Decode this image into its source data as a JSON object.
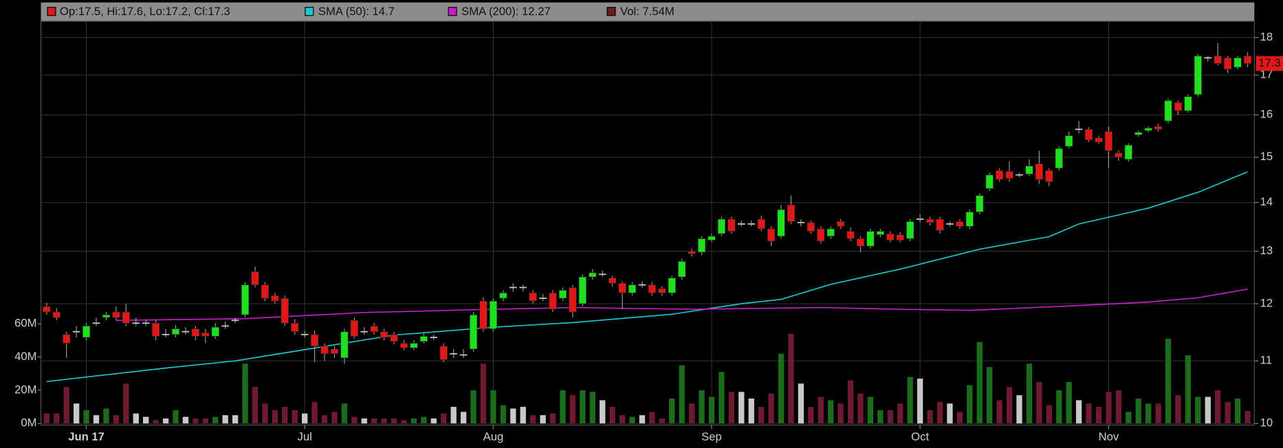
{
  "chart_data": {
    "type": "candlestick",
    "categories": [
      null,
      null,
      null,
      null,
      "Jun 17",
      null,
      null,
      null,
      null,
      null,
      null,
      null,
      null,
      null,
      null,
      null,
      null,
      null,
      null,
      null,
      null,
      null,
      null,
      null,
      null,
      null,
      "Jul",
      null,
      null,
      null,
      null,
      null,
      null,
      null,
      null,
      null,
      null,
      null,
      null,
      null,
      null,
      null,
      null,
      null,
      null,
      "Aug",
      null,
      null,
      null,
      null,
      null,
      null,
      null,
      null,
      null,
      null,
      null,
      null,
      null,
      null,
      null,
      null,
      null,
      null,
      null,
      null,
      null,
      "Sep",
      null,
      null,
      null,
      null,
      null,
      null,
      null,
      null,
      null,
      null,
      null,
      null,
      null,
      null,
      null,
      null,
      null,
      null,
      null,
      null,
      "Oct",
      null,
      null,
      null,
      null,
      null,
      null,
      null,
      null,
      null,
      null,
      null,
      null,
      null,
      null,
      null,
      null,
      null,
      null,
      "Nov",
      null,
      null,
      null,
      null,
      null,
      null,
      null,
      null,
      null,
      null,
      null,
      null,
      null,
      null
    ],
    "open": [
      11.95,
      11.85,
      11.45,
      11.5,
      11.4,
      11.65,
      11.75,
      11.85,
      11.85,
      11.65,
      11.65,
      11.65,
      11.45,
      11.45,
      11.5,
      11.55,
      11.48,
      11.42,
      11.6,
      11.7,
      11.8,
      12.6,
      12.35,
      12.15,
      12.1,
      11.65,
      11.45,
      11.45,
      11.25,
      11.2,
      11.05,
      11.7,
      11.5,
      11.6,
      11.5,
      11.45,
      11.3,
      11.22,
      11.33,
      11.4,
      11.25,
      11.12,
      11.1,
      11.2,
      12.05,
      11.55,
      12.1,
      12.3,
      12.3,
      12.2,
      12.1,
      12.2,
      12.1,
      12.3,
      12.0,
      12.5,
      12.55,
      12.48,
      12.38,
      12.2,
      12.35,
      12.35,
      12.28,
      12.2,
      12.5,
      13.0,
      12.98,
      13.22,
      13.35,
      13.65,
      13.55,
      13.55,
      13.65,
      13.45,
      13.3,
      13.95,
      13.58,
      13.58,
      13.45,
      13.3,
      13.6,
      13.4,
      13.25,
      13.1,
      13.33,
      13.35,
      13.33,
      13.25,
      13.65,
      13.65,
      13.65,
      13.55,
      13.6,
      13.5,
      13.8,
      14.3,
      14.7,
      14.68,
      14.6,
      14.62,
      14.85,
      14.7,
      14.75,
      15.25,
      15.65,
      15.65,
      15.45,
      15.6,
      15.1,
      14.95,
      15.52,
      15.62,
      15.72,
      15.85,
      16.3,
      16.1,
      16.5,
      17.45,
      17.5,
      17.45,
      17.2,
      17.5
    ],
    "high": [
      12.02,
      11.92,
      11.5,
      11.6,
      11.65,
      11.75,
      11.85,
      11.95,
      12.0,
      11.75,
      11.72,
      11.7,
      11.55,
      11.62,
      11.58,
      11.6,
      11.55,
      11.65,
      11.68,
      11.75,
      12.4,
      12.7,
      12.4,
      12.2,
      12.15,
      11.72,
      11.52,
      11.52,
      11.3,
      11.25,
      11.55,
      11.75,
      11.58,
      11.65,
      11.55,
      11.5,
      11.35,
      11.35,
      11.48,
      11.45,
      11.3,
      11.2,
      11.2,
      11.85,
      12.12,
      12.1,
      12.25,
      12.38,
      12.35,
      12.25,
      12.18,
      12.25,
      12.3,
      12.35,
      12.55,
      12.65,
      12.62,
      12.52,
      12.42,
      12.4,
      12.42,
      12.4,
      12.32,
      12.52,
      12.85,
      13.05,
      13.3,
      13.35,
      13.7,
      13.7,
      13.62,
      13.62,
      13.72,
      13.5,
      13.95,
      14.15,
      13.65,
      13.62,
      13.5,
      13.5,
      13.65,
      13.48,
      13.3,
      13.45,
      13.45,
      13.4,
      13.38,
      13.65,
      13.75,
      13.7,
      13.7,
      13.6,
      13.65,
      13.85,
      14.2,
      14.65,
      14.75,
      14.9,
      14.65,
      14.95,
      15.15,
      14.75,
      15.25,
      15.6,
      15.85,
      15.7,
      15.5,
      15.72,
      15.15,
      15.32,
      15.62,
      15.72,
      15.78,
      16.4,
      16.35,
      16.5,
      17.55,
      17.5,
      17.85,
      17.5,
      17.5,
      17.6
    ],
    "low": [
      11.8,
      11.7,
      11.05,
      11.4,
      11.35,
      11.6,
      11.7,
      11.7,
      11.6,
      11.6,
      11.6,
      11.35,
      11.4,
      11.4,
      11.45,
      11.35,
      11.3,
      11.38,
      11.55,
      11.65,
      11.75,
      12.3,
      12.05,
      12.0,
      11.6,
      11.45,
      11.4,
      10.98,
      11.0,
      11.05,
      10.95,
      11.38,
      11.45,
      11.45,
      11.35,
      11.28,
      11.18,
      11.18,
      11.3,
      11.35,
      10.98,
      11.05,
      11.05,
      11.15,
      11.5,
      11.5,
      12.05,
      12.22,
      12.22,
      12.0,
      12.05,
      11.85,
      12.05,
      11.75,
      11.95,
      12.45,
      12.5,
      12.32,
      11.9,
      12.15,
      12.3,
      12.15,
      12.15,
      12.15,
      12.45,
      12.9,
      12.92,
      13.18,
      13.3,
      13.35,
      13.5,
      13.5,
      13.4,
      13.1,
      13.25,
      13.55,
      13.5,
      13.35,
      13.15,
      13.25,
      13.45,
      13.2,
      12.98,
      13.05,
      13.28,
      13.18,
      13.18,
      13.2,
      13.58,
      13.52,
      13.35,
      13.5,
      13.45,
      13.45,
      13.75,
      14.25,
      14.45,
      14.45,
      14.55,
      14.58,
      14.4,
      14.35,
      14.7,
      15.2,
      15.55,
      15.35,
      15.3,
      14.75,
      14.92,
      14.9,
      15.48,
      15.58,
      15.6,
      15.8,
      16.0,
      16.05,
      16.45,
      17.35,
      17.25,
      17.05,
      17.15,
      17.2
    ],
    "close": [
      11.85,
      11.75,
      11.3,
      11.5,
      11.6,
      11.65,
      11.8,
      11.75,
      11.65,
      11.65,
      11.65,
      11.42,
      11.45,
      11.55,
      11.5,
      11.42,
      11.42,
      11.58,
      11.6,
      11.7,
      12.35,
      12.35,
      12.1,
      12.05,
      11.65,
      11.5,
      11.45,
      11.25,
      11.12,
      11.12,
      11.5,
      11.42,
      11.5,
      11.5,
      11.4,
      11.33,
      11.22,
      11.3,
      11.42,
      11.4,
      11.02,
      11.12,
      11.1,
      11.8,
      11.55,
      12.05,
      12.2,
      12.3,
      12.3,
      12.05,
      12.1,
      11.9,
      12.25,
      11.85,
      12.5,
      12.58,
      12.55,
      12.38,
      12.2,
      12.35,
      12.35,
      12.2,
      12.2,
      12.48,
      12.8,
      12.95,
      13.25,
      13.3,
      13.65,
      13.4,
      13.55,
      13.55,
      13.45,
      13.2,
      13.85,
      13.6,
      13.58,
      13.4,
      13.2,
      13.45,
      13.5,
      13.25,
      13.1,
      13.4,
      13.4,
      13.22,
      13.22,
      13.6,
      13.65,
      13.58,
      13.42,
      13.55,
      13.5,
      13.8,
      14.15,
      14.6,
      14.5,
      14.52,
      14.6,
      14.8,
      14.5,
      14.45,
      15.2,
      15.5,
      15.65,
      15.4,
      15.35,
      15.15,
      15.0,
      15.28,
      15.58,
      15.68,
      15.65,
      16.35,
      16.1,
      16.45,
      17.5,
      17.45,
      17.3,
      17.15,
      17.45,
      17.3
    ],
    "volume": [
      6,
      6,
      22,
      12,
      8,
      5,
      9,
      5,
      24,
      6,
      4,
      2,
      3,
      8,
      4,
      3,
      3,
      4,
      5,
      5,
      36,
      22,
      12,
      8,
      10,
      8,
      6,
      13,
      5,
      7,
      12,
      4,
      3,
      3,
      3,
      3,
      2,
      3,
      4,
      3,
      6,
      10,
      7,
      20,
      36,
      20,
      11,
      9,
      10,
      5,
      5,
      6,
      20,
      17,
      20,
      19,
      14,
      10,
      5,
      4,
      5,
      7,
      3,
      15,
      35,
      12,
      20,
      16,
      31,
      19,
      19,
      15,
      10,
      18,
      42,
      54,
      24,
      10,
      16,
      14,
      12,
      26,
      18,
      16,
      8,
      8,
      12,
      28,
      27,
      8,
      13,
      12,
      7,
      23,
      49,
      34,
      14,
      22,
      17,
      36,
      25,
      11,
      20,
      25,
      14,
      12,
      10,
      19,
      20,
      7,
      15,
      12,
      12,
      51,
      17,
      41,
      16,
      16,
      20,
      13,
      15,
      7.54
    ],
    "candle_label": "Op:17.5, Hi:17.6, Lo:17.2, Cl:17.3",
    "candle_legend_color": "#e01818",
    "volume_label": "Vol: 7.54M",
    "volume_legend_color": "#6b1a22",
    "up_color": "#1fe01f",
    "down_color": "#e01818",
    "volume_up_color": "#1d6b1d",
    "volume_down_color": "#6e1a30",
    "volume_flat_color": "#c8c8c8",
    "lines": [
      {
        "name": "SMA (50): 14.7",
        "color": "#18c8d0",
        "x": [
          0,
          12,
          19,
          26,
          35,
          45,
          53,
          63,
          70,
          74,
          79,
          86,
          94,
          101,
          104,
          111,
          116,
          121
        ],
        "values": [
          10.66,
          10.88,
          11.0,
          11.19,
          11.44,
          11.58,
          11.66,
          11.81,
          12.0,
          12.08,
          12.36,
          12.65,
          13.04,
          13.29,
          13.55,
          13.88,
          14.22,
          14.67
        ]
      },
      {
        "name": "SMA (200): 12.27",
        "color": "#c81ec8",
        "x": [
          7,
          20,
          32,
          45,
          53,
          65,
          78,
          86,
          93,
          102,
          111,
          116,
          121
        ],
        "values": [
          11.7,
          11.73,
          11.84,
          11.9,
          11.93,
          11.9,
          11.93,
          11.9,
          11.88,
          11.95,
          12.03,
          12.11,
          12.27
        ]
      }
    ],
    "last_price": 17.3,
    "ylim": [
      10,
      18.45
    ],
    "yticks": [
      10,
      11,
      12,
      13,
      14,
      15,
      16,
      17,
      18
    ],
    "log_scale": true,
    "volume_lim": [
      0,
      242
    ],
    "volume_ticks": [
      {
        "value": 0,
        "label": "0M"
      },
      {
        "value": 20,
        "label": "20M"
      },
      {
        "value": 40,
        "label": "40M"
      },
      {
        "value": 60,
        "label": "60M"
      }
    ],
    "grid": true
  }
}
